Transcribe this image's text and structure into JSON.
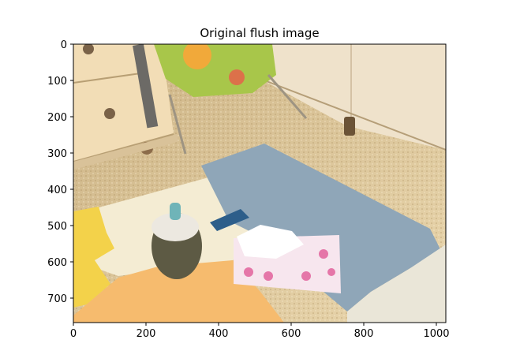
{
  "figure": {
    "title": "Original flush image"
  },
  "axes": {
    "x_ticks": [
      "0",
      "200",
      "400",
      "600",
      "800",
      "1000"
    ],
    "y_ticks": [
      "0",
      "100",
      "200",
      "300",
      "400",
      "500",
      "600",
      "700"
    ],
    "x_range": [
      0,
      1024
    ],
    "y_range": [
      0,
      768
    ]
  },
  "scene": {
    "description_colors": {
      "floor": "#d8c090",
      "drawer": "#f0dcb8",
      "mat_blue": "#8fa6b8",
      "mat_cream": "#f3ead0",
      "mat_yellow": "#f3d24a",
      "mat_orange": "#f6b86a",
      "cabinet": "#f2e5cf"
    }
  }
}
